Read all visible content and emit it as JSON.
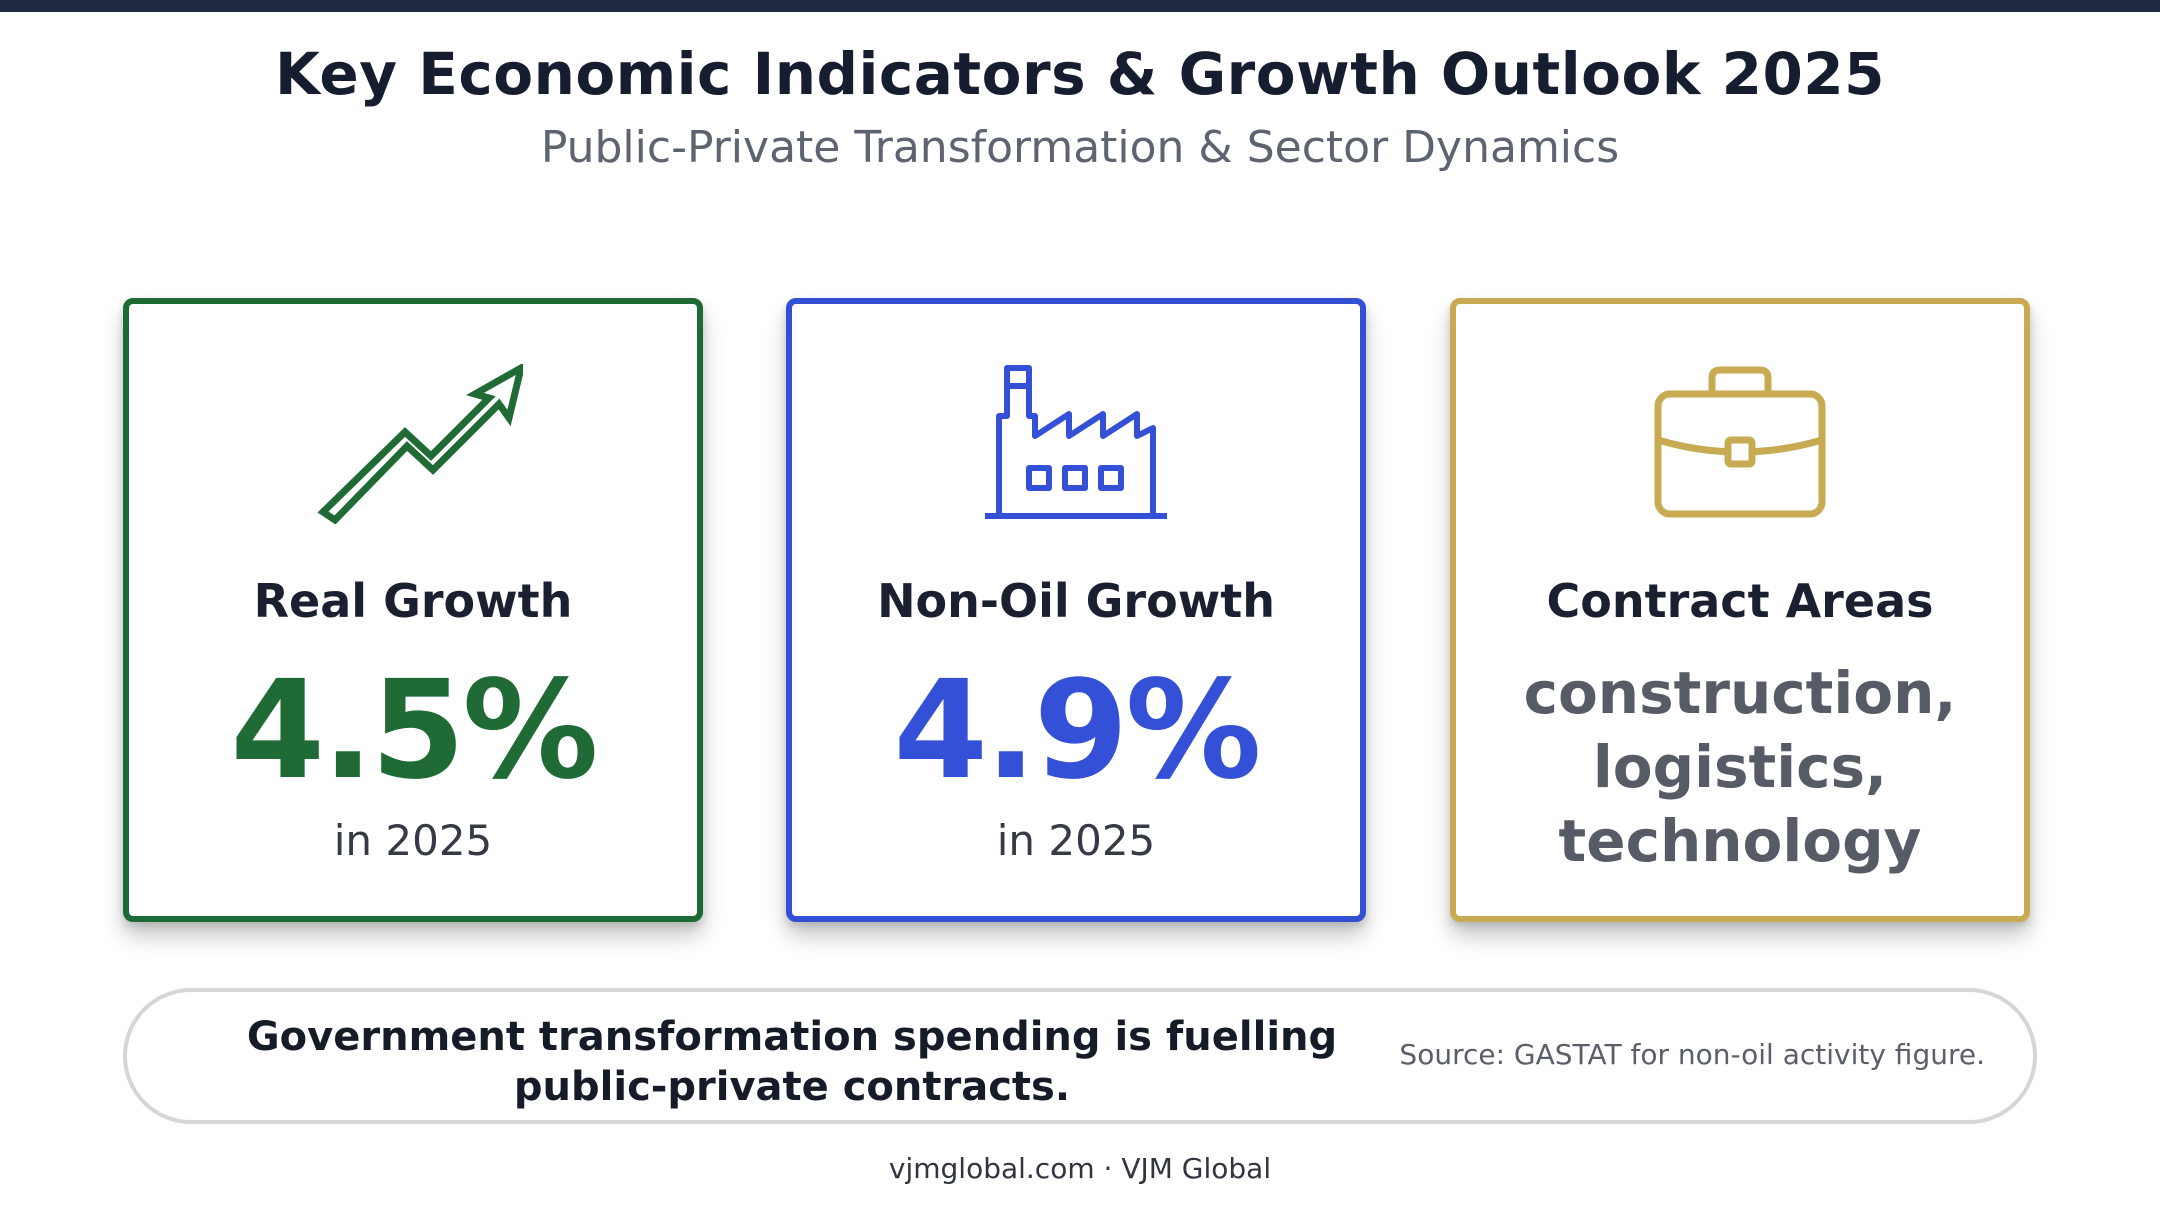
{
  "header": {
    "title": "Key Economic Indicators & Growth Outlook 2025",
    "subtitle": "Public-Private Transformation & Sector Dynamics"
  },
  "cards": [
    {
      "icon": "trending-up-arrow-icon",
      "heading": "Real Growth",
      "value": "4.5%",
      "note": "in 2025",
      "color": "#1f6a35"
    },
    {
      "icon": "factory-icon",
      "heading": "Non-Oil Growth",
      "value": "4.9%",
      "note": "in 2025",
      "color": "#3350d6"
    },
    {
      "icon": "briefcase-icon",
      "heading": "Contract Areas",
      "areas": [
        "construction,",
        "logistics,",
        "technology"
      ],
      "color": "#c8aa52"
    }
  ],
  "summary": {
    "statement": "Government transformation spending is fuelling public-private contracts.",
    "source": "Source: GASTAT for non-oil activity figure."
  },
  "footer": {
    "credit": "vjmglobal.com · VJM Global"
  }
}
